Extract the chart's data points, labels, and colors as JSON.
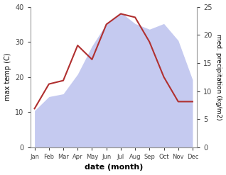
{
  "months": [
    "Jan",
    "Feb",
    "Mar",
    "Apr",
    "May",
    "Jun",
    "Jul",
    "Aug",
    "Sep",
    "Oct",
    "Nov",
    "Dec"
  ],
  "temperature": [
    11,
    18,
    19,
    29,
    25,
    35,
    38,
    37,
    30,
    20,
    13,
    13
  ],
  "precipitation": [
    6.5,
    9,
    9.5,
    13,
    18,
    22,
    24,
    22,
    21,
    22,
    19,
    12
  ],
  "temp_color": "#b03030",
  "precip_color_fill": "#c5caf0",
  "ylabel_left": "max temp (C)",
  "ylabel_right": "med. precipitation (kg/m2)",
  "xlabel": "date (month)",
  "ylim_left": [
    0,
    40
  ],
  "ylim_right": [
    0,
    25
  ],
  "yticks_left": [
    0,
    10,
    20,
    30,
    40
  ],
  "yticks_right": [
    0,
    5,
    10,
    15,
    20,
    25
  ]
}
